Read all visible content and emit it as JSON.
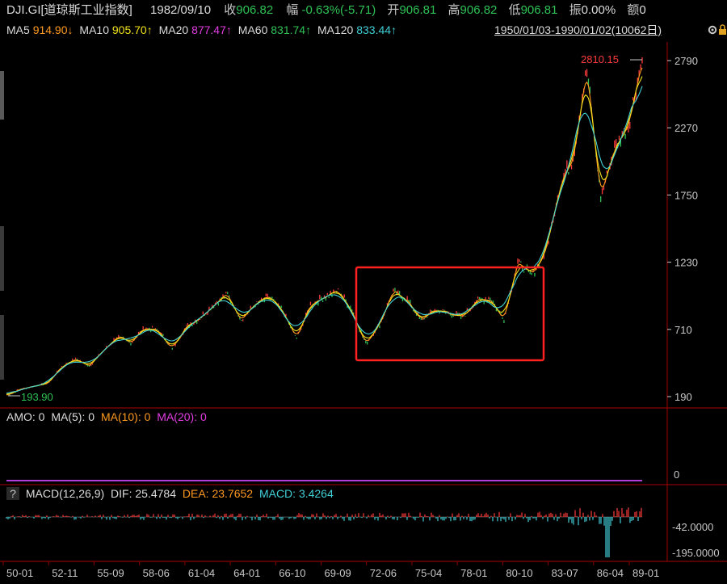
{
  "header": {
    "symbol": "DJI.GI[道琼斯工业指数]",
    "date": "1982/09/10",
    "close_label": "收",
    "close_value": "906.82",
    "change_label": "幅",
    "change_value": "-0.63%(-5.71)",
    "open_label": "开",
    "open_value": "906.81",
    "high_label": "高",
    "high_value": "906.82",
    "low_label": "低",
    "low_value": "906.81",
    "amp_label": "振",
    "amp_value": "0.00%",
    "amount_label": "额",
    "amount_value": "0"
  },
  "ma_bar": {
    "ma5_label": "MA5",
    "ma5_value": "914.90↓",
    "ma10_label": "MA10",
    "ma10_value": "905.70↑",
    "ma20_label": "MA20",
    "ma20_value": "877.47↑",
    "ma60_label": "MA60",
    "ma60_value": "831.74↑",
    "ma120_label": "MA120",
    "ma120_value": "833.44↑",
    "date_range": "1950/01/03-1990/01/02(10062日)"
  },
  "main_chart": {
    "max_label": "2810.15",
    "min_label": "193.90",
    "y_ticks": [
      "2790",
      "2270",
      "1750",
      "1230",
      "710",
      "190"
    ]
  },
  "amo_panel": {
    "amo_label": "AMO: 0",
    "ma5_label": "MA(5): 0",
    "ma10_label": "MA(10): 0",
    "ma20_label": "MA(20): 0",
    "y_tick": "0"
  },
  "macd_panel": {
    "help": "?",
    "title": "MACD(12,26,9)",
    "dif_label": "DIF: 25.4784",
    "dea_label": "DEA: 23.7652",
    "macd_label": "MACD: 3.4264",
    "y_ticks": [
      "-42.0000",
      "-195.0000"
    ]
  },
  "x_axis": {
    "labels": [
      "50-01",
      "52-11",
      "55-09",
      "58-06",
      "61-04",
      "64-01",
      "66-10",
      "69-09",
      "72-06",
      "75-04",
      "78-01",
      "80-10",
      "83-07",
      "86-04",
      "89-01"
    ]
  },
  "colors": {
    "up": "#ff3b3b",
    "down": "#2ec255",
    "ma5": "#ff9a1f",
    "ma10": "#f2e21a",
    "ma20": "#e23ce2",
    "ma60": "#2ec255",
    "ma120": "#3fcfd6",
    "highlight_box": "#ff2020",
    "grid": "#8a0000"
  },
  "chart_data": {
    "type": "line",
    "series": [
      {
        "x": [
          "1950-01",
          "1951-06",
          "1952-11",
          "1954-03",
          "1955-09",
          "1957-01",
          "1957-10",
          "1958-06",
          "1959-08",
          "1960-10",
          "1961-04",
          "1961-12",
          "1962-06",
          "1963-06",
          "1964-01",
          "1965-06",
          "1966-02",
          "1966-10",
          "1967-09",
          "1968-11",
          "1969-09",
          "1970-05",
          "1971-04",
          "1972-06",
          "1973-01",
          "1974-01",
          "1974-12",
          "1975-04",
          "1976-09",
          "1977-06",
          "1978-01",
          "1978-09",
          "1979-06",
          "1980-03",
          "1980-10",
          "1981-06",
          "1982-08",
          "1983-07",
          "1984-07",
          "1985-06",
          "1986-04",
          "1987-01",
          "1987-08",
          "1987-10",
          "1988-06",
          "1989-01",
          "1989-12"
        ],
        "values": [
          200,
          245,
          272,
          290,
          420,
          480,
          430,
          540,
          650,
          610,
          720,
          700,
          560,
          730,
          800,
          900,
          980,
          790,
          900,
          960,
          850,
          640,
          900,
          960,
          1010,
          860,
          600,
          750,
          1000,
          940,
          780,
          860,
          840,
          800,
          930,
          950,
          790,
          1230,
          1130,
          1300,
          1800,
          2050,
          2720,
          1740,
          2100,
          2300,
          2790
        ]
      }
    ],
    "y_min": 190,
    "y_max": 2790,
    "ylabel": ""
  }
}
